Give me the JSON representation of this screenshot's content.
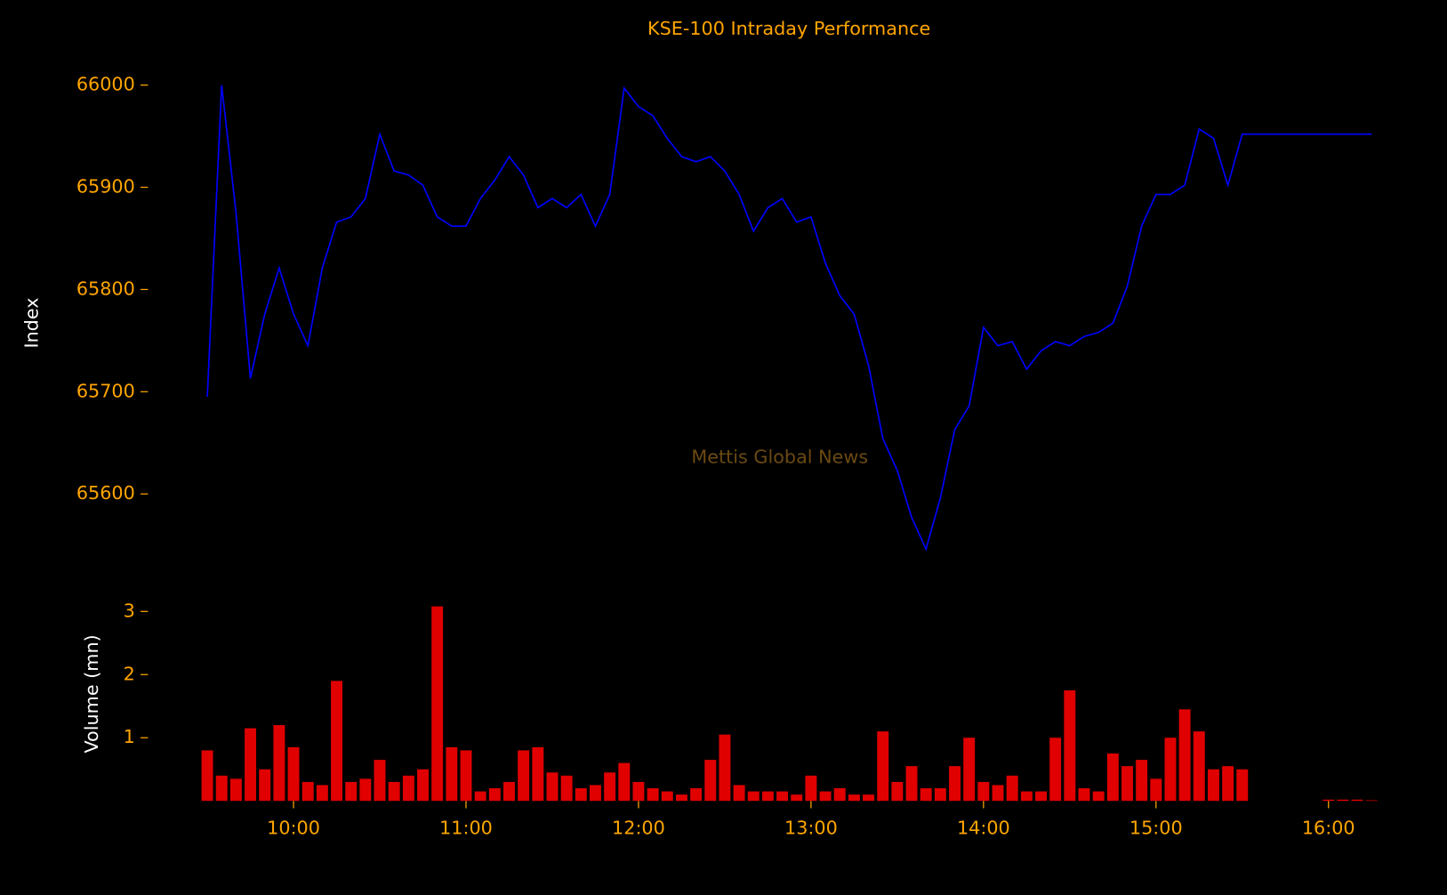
{
  "chart_data": [
    {
      "type": "line",
      "title": "KSE-100 Intraday Performance",
      "ylabel": "Index",
      "watermark": "Mettis Global News",
      "color": "#0000ff",
      "x": [
        "09:30",
        "09:35",
        "09:40",
        "09:45",
        "09:50",
        "09:55",
        "10:00",
        "10:05",
        "10:10",
        "10:15",
        "10:20",
        "10:25",
        "10:30",
        "10:35",
        "10:40",
        "10:45",
        "10:50",
        "10:55",
        "11:00",
        "11:05",
        "11:10",
        "11:15",
        "11:20",
        "11:25",
        "11:30",
        "11:35",
        "11:40",
        "11:45",
        "11:50",
        "11:55",
        "12:00",
        "12:05",
        "12:10",
        "12:15",
        "12:20",
        "12:25",
        "12:30",
        "12:35",
        "12:40",
        "12:45",
        "12:50",
        "12:55",
        "13:00",
        "13:05",
        "13:10",
        "13:15",
        "13:20",
        "13:25",
        "13:30",
        "13:35",
        "13:40",
        "13:45",
        "13:50",
        "13:55",
        "14:00",
        "14:05",
        "14:10",
        "14:15",
        "14:20",
        "14:25",
        "14:30",
        "14:35",
        "14:40",
        "14:45",
        "14:50",
        "14:55",
        "15:00",
        "15:05",
        "15:10",
        "15:15",
        "15:20",
        "15:25",
        "15:30",
        "16:15"
      ],
      "values": [
        65695,
        66000,
        65875,
        65713,
        65776,
        65821,
        65776,
        65745,
        65821,
        65866,
        65871,
        65889,
        65952,
        65916,
        65912,
        65902,
        65871,
        65862,
        65862,
        65889,
        65907,
        65930,
        65912,
        65880,
        65889,
        65880,
        65893,
        65862,
        65893,
        65997,
        65979,
        65970,
        65948,
        65930,
        65925,
        65930,
        65916,
        65893,
        65857,
        65880,
        65889,
        65866,
        65871,
        65826,
        65794,
        65776,
        65726,
        65654,
        65623,
        65577,
        65546,
        65596,
        65663,
        65686,
        65763,
        65745,
        65749,
        65722,
        65740,
        65749,
        65745,
        65754,
        65758,
        65767,
        65803,
        65862,
        65893,
        65893,
        65902,
        65957,
        65948,
        65902,
        65952,
        65952
      ],
      "xlim": [
        "09:10",
        "16:35"
      ],
      "ylim": [
        65510,
        66030
      ],
      "yticks": [
        65600,
        65700,
        65800,
        65900,
        66000
      ],
      "grid": false
    },
    {
      "type": "bar",
      "ylabel": "Volume (mn)",
      "color": "#e00000",
      "x": [
        "09:30",
        "09:35",
        "09:40",
        "09:45",
        "09:50",
        "09:55",
        "10:00",
        "10:05",
        "10:10",
        "10:15",
        "10:20",
        "10:25",
        "10:30",
        "10:35",
        "10:40",
        "10:45",
        "10:50",
        "10:55",
        "11:00",
        "11:05",
        "11:10",
        "11:15",
        "11:20",
        "11:25",
        "11:30",
        "11:35",
        "11:40",
        "11:45",
        "11:50",
        "11:55",
        "12:00",
        "12:05",
        "12:10",
        "12:15",
        "12:20",
        "12:25",
        "12:30",
        "12:35",
        "12:40",
        "12:45",
        "12:50",
        "12:55",
        "13:00",
        "13:05",
        "13:10",
        "13:15",
        "13:20",
        "13:25",
        "13:30",
        "13:35",
        "13:40",
        "13:45",
        "13:50",
        "13:55",
        "14:00",
        "14:05",
        "14:10",
        "14:15",
        "14:20",
        "14:25",
        "14:30",
        "14:35",
        "14:40",
        "14:45",
        "14:50",
        "14:55",
        "15:00",
        "15:05",
        "15:10",
        "15:15",
        "15:20",
        "15:25",
        "15:30",
        "16:00",
        "16:05",
        "16:10",
        "16:15"
      ],
      "values": [
        0.8,
        0.4,
        0.35,
        1.15,
        0.5,
        1.2,
        0.85,
        0.3,
        0.25,
        1.9,
        0.3,
        0.35,
        0.65,
        0.3,
        0.4,
        0.5,
        3.08,
        0.85,
        0.8,
        0.15,
        0.2,
        0.3,
        0.8,
        0.85,
        0.45,
        0.4,
        0.2,
        0.25,
        0.45,
        0.6,
        0.3,
        0.2,
        0.15,
        0.1,
        0.2,
        0.65,
        1.05,
        0.25,
        0.15,
        0.15,
        0.15,
        0.1,
        0.4,
        0.15,
        0.2,
        0.1,
        0.1,
        1.1,
        0.3,
        0.55,
        0.2,
        0.2,
        0.55,
        1.0,
        0.3,
        0.25,
        0.4,
        0.15,
        0.15,
        1.0,
        1.75,
        0.2,
        0.15,
        0.75,
        0.55,
        0.65,
        0.35,
        1.0,
        1.45,
        1.1,
        0.5,
        0.55,
        0.5,
        0.02,
        0.02,
        0.02,
        0.01
      ],
      "xlim": [
        "09:10",
        "16:35"
      ],
      "xticks": [
        "10:00",
        "11:00",
        "12:00",
        "13:00",
        "14:00",
        "15:00",
        "16:00"
      ],
      "ylim": [
        0,
        3.2
      ],
      "yticks": [
        1,
        2,
        3
      ],
      "grid": false
    }
  ]
}
